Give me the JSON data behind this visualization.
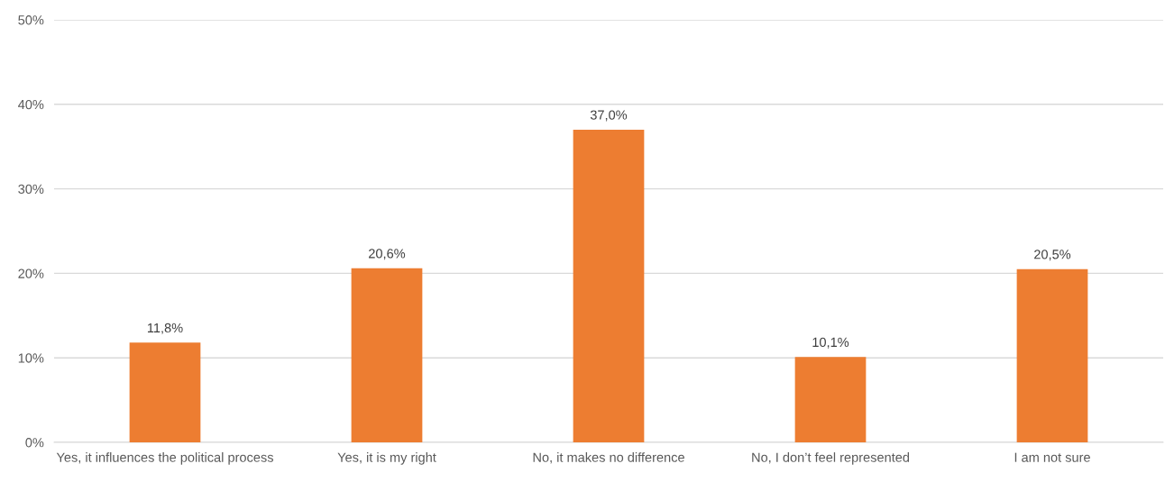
{
  "chart_data": {
    "type": "bar",
    "categories": [
      "Yes, it influences the political process",
      "Yes, it is my right",
      "No, it makes no difference",
      "No, I don’t feel represented",
      "I am not sure"
    ],
    "values": [
      11.8,
      20.6,
      37.0,
      10.1,
      20.5
    ],
    "value_labels": [
      "11,8%",
      "20,6%",
      "37,0%",
      "10,1%",
      "20,5%"
    ],
    "color": "#ed7d31",
    "ylim": [
      0,
      50
    ],
    "yticks": [
      {
        "value": 0,
        "label": "0%"
      },
      {
        "value": 10,
        "label": "10%"
      },
      {
        "value": 20,
        "label": "20%"
      },
      {
        "value": 30,
        "label": "30%"
      },
      {
        "value": 40,
        "label": "40%"
      },
      {
        "value": 50,
        "label": "50%"
      }
    ],
    "grid": "y"
  }
}
